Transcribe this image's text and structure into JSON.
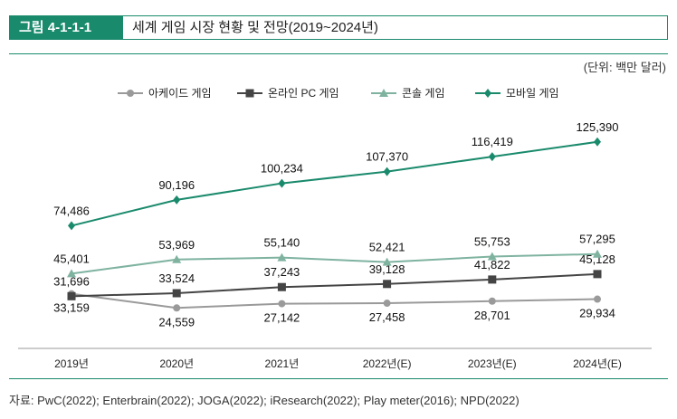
{
  "header": {
    "figure_no": "그림 4-1-1-1",
    "title": "세계 게임 시장 현황 및 전망(2019~2024년)"
  },
  "unit": "(단위: 백만 달러)",
  "source": "자료: PwC(2022); Enterbrain(2022); JOGA(2022); iResearch(2022); Play meter(2016); NPD(2022)",
  "chart_data": {
    "type": "line",
    "title": "세계 게임 시장 현황 및 전망(2019~2024년)",
    "categories": [
      "2019년",
      "2020년",
      "2021년",
      "2022년(E)",
      "2023년(E)",
      "2024년(E)"
    ],
    "legend_position": "top-center",
    "series": [
      {
        "name": "아케이드 게임",
        "color": "#9a9a9a",
        "marker": "circle",
        "values": [
          33159,
          24559,
          27142,
          27458,
          28701,
          29934
        ],
        "labels": [
          "33,159",
          "24,559",
          "27,142",
          "27,458",
          "28,701",
          "29,934"
        ]
      },
      {
        "name": "온라인 PC 게임",
        "color": "#444444",
        "marker": "square",
        "values": [
          31696,
          33524,
          37243,
          39128,
          41822,
          45128
        ],
        "labels": [
          "31,696",
          "33,524",
          "37,243",
          "39,128",
          "41,822",
          "45,128"
        ]
      },
      {
        "name": "콘솔 게임",
        "color": "#7fb3a0",
        "marker": "triangle",
        "values": [
          45401,
          53969,
          55140,
          52421,
          55753,
          57295
        ],
        "labels": [
          "45,401",
          "53,969",
          "55,140",
          "52,421",
          "55,753",
          "57,295"
        ]
      },
      {
        "name": "모바일 게임",
        "color": "#1a8a6c",
        "marker": "diamond",
        "values": [
          74486,
          90196,
          100234,
          107370,
          116419,
          125390
        ],
        "labels": [
          "74,486",
          "90,196",
          "100,234",
          "107,370",
          "116,419",
          "125,390"
        ]
      }
    ]
  }
}
